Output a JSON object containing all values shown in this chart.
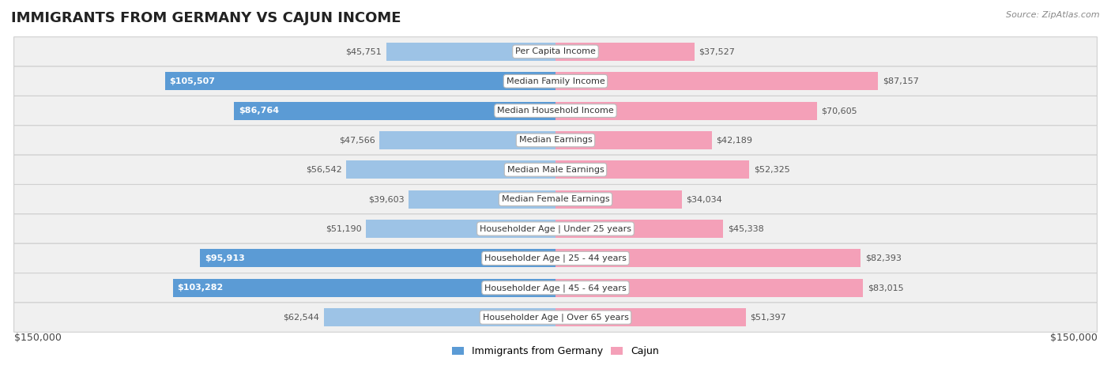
{
  "title": "IMMIGRANTS FROM GERMANY VS CAJUN INCOME",
  "source": "Source: ZipAtlas.com",
  "categories": [
    "Per Capita Income",
    "Median Family Income",
    "Median Household Income",
    "Median Earnings",
    "Median Male Earnings",
    "Median Female Earnings",
    "Householder Age | Under 25 years",
    "Householder Age | 25 - 44 years",
    "Householder Age | 45 - 64 years",
    "Householder Age | Over 65 years"
  ],
  "germany_values": [
    45751,
    105507,
    86764,
    47566,
    56542,
    39603,
    51190,
    95913,
    103282,
    62544
  ],
  "cajun_values": [
    37527,
    87157,
    70605,
    42189,
    52325,
    34034,
    45338,
    82393,
    83015,
    51397
  ],
  "germany_labels": [
    "$45,751",
    "$105,507",
    "$86,764",
    "$47,566",
    "$56,542",
    "$39,603",
    "$51,190",
    "$95,913",
    "$103,282",
    "$62,544"
  ],
  "cajun_labels": [
    "$37,527",
    "$87,157",
    "$70,605",
    "$42,189",
    "$52,325",
    "$34,034",
    "$45,338",
    "$82,393",
    "$83,015",
    "$51,397"
  ],
  "germany_color_dark": "#5B9BD5",
  "germany_color_light": "#9DC3E6",
  "cajun_color": "#F4A0B8",
  "max_value": 150000,
  "background_color": "#FFFFFF",
  "row_bg_color": "#F0F0F0",
  "row_border_color": "#D0D0D0",
  "legend_germany": "Immigrants from Germany",
  "legend_cajun": "Cajun",
  "xlabel_left": "$150,000",
  "xlabel_right": "$150,000",
  "germany_inside_threshold": 65000,
  "label_color_outside": "#555555",
  "label_color_inside": "#FFFFFF"
}
